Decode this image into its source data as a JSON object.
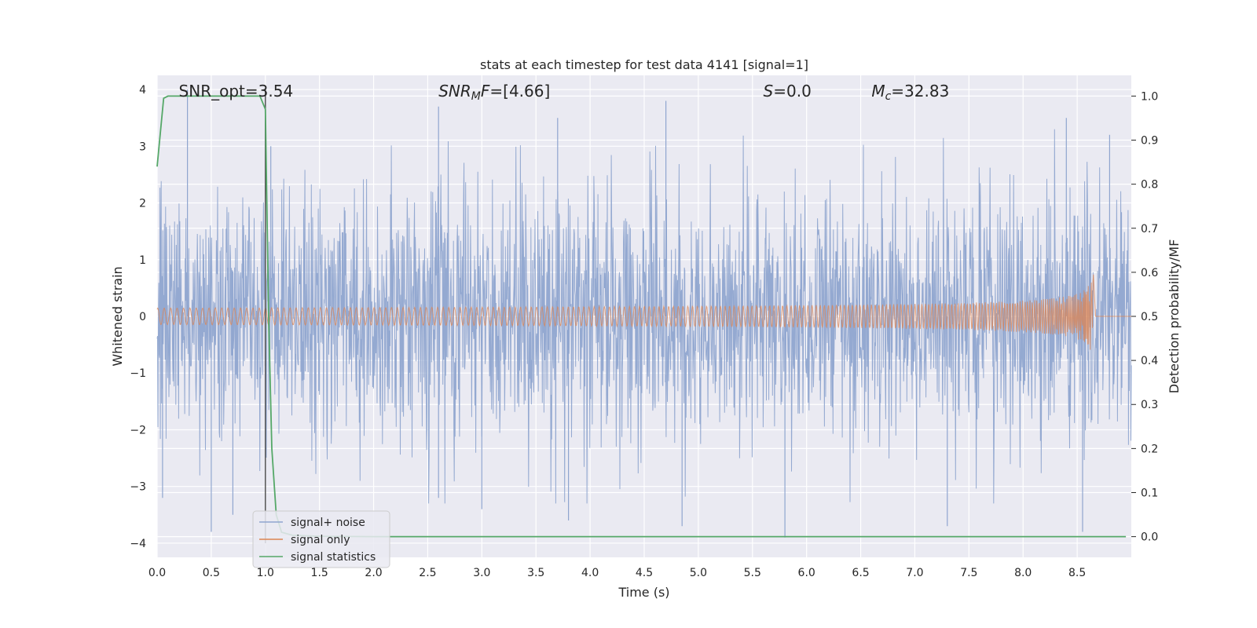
{
  "chart_data": {
    "type": "line",
    "title": "stats at each timestep for test data 4141 [signal=1]",
    "xlabel": "Time (s)",
    "ylabel": "Whitened strain",
    "y2label": "Detection probability/MF",
    "xlim": [
      0,
      9
    ],
    "ylim": [
      -4.25,
      4.25
    ],
    "y2lim": [
      -0.047,
      1.047
    ],
    "xticks": [
      "0.0",
      "0.5",
      "1.0",
      "1.5",
      "2.0",
      "2.5",
      "3.0",
      "3.5",
      "4.0",
      "4.5",
      "5.0",
      "5.5",
      "6.0",
      "6.5",
      "7.0",
      "7.5",
      "8.0",
      "8.5"
    ],
    "yticks": [
      "−4",
      "−3",
      "−2",
      "−1",
      "0",
      "1",
      "2",
      "3",
      "4"
    ],
    "y2ticks": [
      "0.0",
      "0.1",
      "0.2",
      "0.3",
      "0.4",
      "0.5",
      "0.6",
      "0.7",
      "0.8",
      "0.9",
      "1.0"
    ],
    "grid": true,
    "legend_position": "lower-left",
    "annotations": [
      {
        "text": "SNR_opt=3.54",
        "x": 0.2
      },
      {
        "text": "SNR",
        "sub": "M",
        "suffix": "F=[4.66]",
        "italic": true,
        "x": 2.6
      },
      {
        "text": "S",
        "suffix": "=0.0",
        "italic": true,
        "x": 5.6
      },
      {
        "text": "M",
        "sub": "c",
        "suffix": "=32.83",
        "italic": true,
        "x": 6.6
      }
    ],
    "vertical_line": {
      "x": 1.0,
      "color": "#555555"
    },
    "series": [
      {
        "name": "signal+ noise",
        "color": "#8fa5cf",
        "axis": "left",
        "kind": "noise",
        "envelope_typical": 2.0,
        "peak_values": [
          {
            "x": 0.28,
            "y": 4.0
          },
          {
            "x": 0.05,
            "y": -3.2
          },
          {
            "x": 0.5,
            "y": -3.8
          },
          {
            "x": 0.7,
            "y": -3.5
          },
          {
            "x": 1.05,
            "y": 3.0
          },
          {
            "x": 2.6,
            "y": 3.7
          },
          {
            "x": 2.6,
            "y": -3.2
          },
          {
            "x": 3.0,
            "y": -3.4
          },
          {
            "x": 3.7,
            "y": 3.5
          },
          {
            "x": 3.8,
            "y": -3.6
          },
          {
            "x": 4.7,
            "y": 3.8
          },
          {
            "x": 4.85,
            "y": -3.7
          },
          {
            "x": 5.8,
            "y": -3.9
          },
          {
            "x": 7.3,
            "y": -3.7
          },
          {
            "x": 8.4,
            "y": 3.5
          },
          {
            "x": 8.55,
            "y": -3.8
          },
          {
            "x": 8.8,
            "y": 3.2
          }
        ]
      },
      {
        "name": "signal only",
        "color": "#dd8452",
        "axis": "left",
        "kind": "chirp",
        "merger_time": 8.65,
        "peak_amplitude": 0.9
      },
      {
        "name": "signal statistics",
        "color": "#55a868",
        "axis": "right",
        "kind": "line",
        "x": [
          0.0,
          0.06,
          0.1,
          0.2,
          0.95,
          1.0,
          1.03,
          1.06,
          1.1,
          1.15,
          1.25,
          1.5,
          2.0,
          3.0,
          4.0,
          5.0,
          6.0,
          7.0,
          8.0,
          8.95
        ],
        "y": [
          0.84,
          0.995,
          1.0,
          1.0,
          1.0,
          0.97,
          0.5,
          0.2,
          0.05,
          0.01,
          0.003,
          0.001,
          0.0,
          0.0,
          0.0,
          0.0,
          0.0,
          0.0,
          0.0,
          0.0
        ]
      }
    ]
  }
}
